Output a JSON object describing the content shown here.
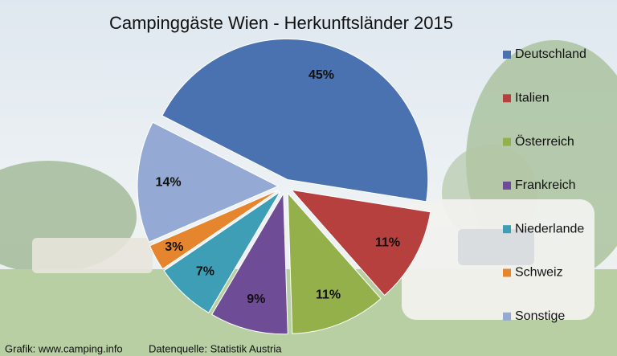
{
  "chart_data": {
    "type": "pie",
    "title": "Campinggäste Wien - Herkunftsländer 2015",
    "categories": [
      "Deutschland",
      "Italien",
      "Österreich",
      "Frankreich",
      "Niederlande",
      "Schweiz",
      "Sonstige"
    ],
    "values": [
      45,
      11,
      11,
      9,
      7,
      3,
      14
    ],
    "value_labels": [
      "45%",
      "11%",
      "11%",
      "9%",
      "7%",
      "3%",
      "14%"
    ],
    "colors": [
      "#4a72b0",
      "#b5403d",
      "#93b04a",
      "#6f4c96",
      "#3d9eb5",
      "#e5862f",
      "#94a9d4"
    ],
    "legend": "right",
    "credit": "Grafik: www.camping.info",
    "source": "Datenquelle: Statistik Austria"
  }
}
